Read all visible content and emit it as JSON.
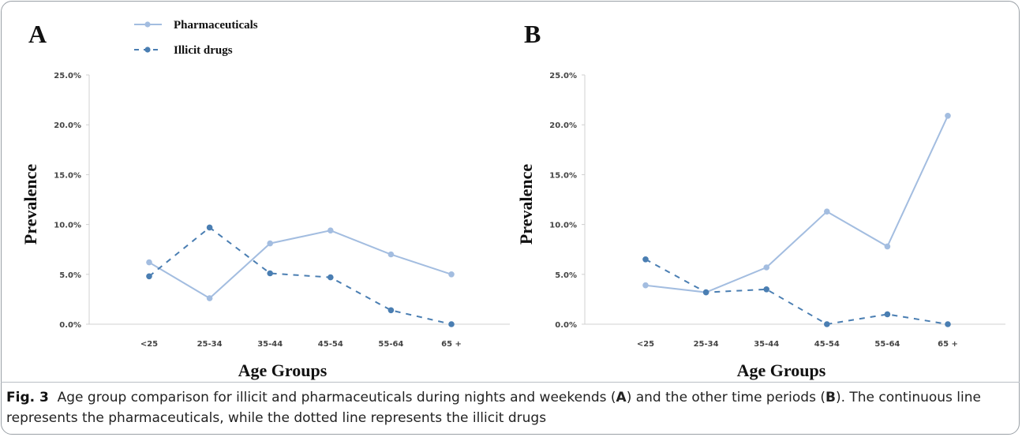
{
  "legend": {
    "pharmaceuticals": "Pharmaceuticals",
    "illicit": "Illicit drugs"
  },
  "colors": {
    "pharmaceuticals": "#a3bde0",
    "illicit": "#4a7eb2",
    "axis": "#d0d0d0",
    "tick_text": "#444444"
  },
  "chart_data": [
    {
      "type": "line",
      "panel_label": "A",
      "xlabel": "Age Groups",
      "ylabel": "Prevalence",
      "categories": [
        "<25",
        "25-34",
        "35-44",
        "45-54",
        "55-64",
        "65 +"
      ],
      "ylim": [
        0,
        25
      ],
      "yticks": [
        "0.0%",
        "5.0%",
        "10.0%",
        "15.0%",
        "20.0%",
        "25.0%"
      ],
      "grid": false,
      "series": [
        {
          "name": "Pharmaceuticals",
          "style": "solid",
          "values": [
            6.2,
            2.6,
            8.1,
            9.4,
            7.0,
            5.0
          ]
        },
        {
          "name": "Illicit drugs",
          "style": "dashed",
          "values": [
            4.8,
            9.7,
            5.1,
            4.7,
            1.4,
            0.0
          ]
        }
      ]
    },
    {
      "type": "line",
      "panel_label": "B",
      "xlabel": "Age Groups",
      "ylabel": "Prevalence",
      "categories": [
        "<25",
        "25-34",
        "35-44",
        "45-54",
        "55-64",
        "65 +"
      ],
      "ylim": [
        0,
        25
      ],
      "yticks": [
        "0.0%",
        "5.0%",
        "10.0%",
        "15.0%",
        "20.0%",
        "25.0%"
      ],
      "grid": false,
      "series": [
        {
          "name": "Pharmaceuticals",
          "style": "solid",
          "values": [
            3.9,
            3.2,
            5.7,
            11.3,
            7.8,
            20.9
          ]
        },
        {
          "name": "Illicit drugs",
          "style": "dashed",
          "values": [
            6.5,
            3.2,
            3.5,
            0.0,
            1.0,
            0.0
          ]
        }
      ]
    }
  ],
  "caption": {
    "fig_label": "Fig. 3",
    "part1": "Age group comparison for illicit and pharmaceuticals during nights and weekends (",
    "a": "A",
    "part2": ") and the other time periods (",
    "b": "B",
    "part3": "). The continuous line represents the pharmaceuticals, while the dotted line represents the illicit drugs"
  }
}
